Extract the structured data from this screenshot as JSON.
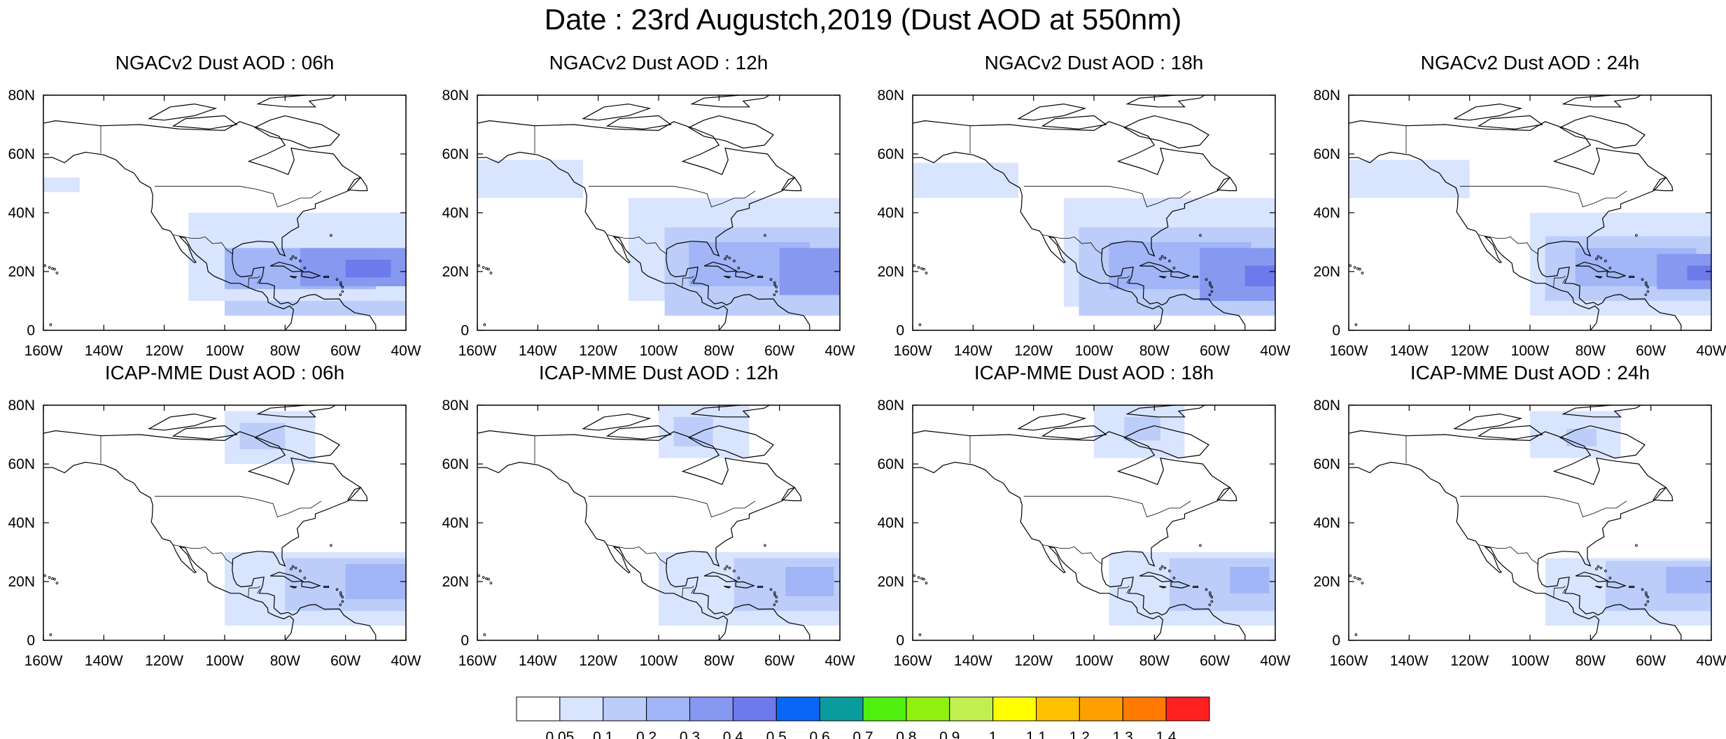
{
  "figure": {
    "title": "Date : 23rd Augustch,2019 (Dust AOD at 550nm)"
  },
  "map": {
    "lon_range": [
      -160,
      -40
    ],
    "lat_range": [
      0,
      80
    ],
    "lon_ticks": [
      "160W",
      "140W",
      "120W",
      "100W",
      "80W",
      "60W",
      "40W"
    ],
    "lat_ticks": [
      "0",
      "20N",
      "40N",
      "60N",
      "80N"
    ],
    "projection": "cylindrical-equidistant",
    "coastlines": true,
    "country_borders": true
  },
  "panels": [
    {
      "id": "ngac-06",
      "title": "NGACv2 Dust AOD : 06h",
      "model": "NGACv2",
      "hour": "06h",
      "regions": [
        {
          "lon": [
            -100,
            -40
          ],
          "lat": [
            5,
            35
          ],
          "level": 0.1
        },
        {
          "lon": [
            -112,
            -40
          ],
          "lat": [
            10,
            40
          ],
          "level": 0.05
        },
        {
          "lon": [
            -160,
            -148
          ],
          "lat": [
            47,
            52
          ],
          "level": 0.05
        },
        {
          "lon": [
            -100,
            -50
          ],
          "lat": [
            14,
            28
          ],
          "level": 0.2
        },
        {
          "lon": [
            -75,
            -40
          ],
          "lat": [
            15,
            28
          ],
          "level": 0.3
        },
        {
          "lon": [
            -60,
            -45
          ],
          "lat": [
            18,
            24
          ],
          "level": 0.4
        }
      ]
    },
    {
      "id": "ngac-12",
      "title": "NGACv2 Dust AOD : 12h",
      "model": "NGACv2",
      "hour": "12h",
      "regions": [
        {
          "lon": [
            -160,
            -125
          ],
          "lat": [
            45,
            58
          ],
          "level": 0.05
        },
        {
          "lon": [
            -110,
            -40
          ],
          "lat": [
            10,
            45
          ],
          "level": 0.05
        },
        {
          "lon": [
            -98,
            -40
          ],
          "lat": [
            5,
            35
          ],
          "level": 0.1
        },
        {
          "lon": [
            -90,
            -50
          ],
          "lat": [
            15,
            30
          ],
          "level": 0.2
        },
        {
          "lon": [
            -60,
            -40
          ],
          "lat": [
            12,
            28
          ],
          "level": 0.3
        }
      ]
    },
    {
      "id": "ngac-18",
      "title": "NGACv2 Dust AOD : 18h",
      "model": "NGACv2",
      "hour": "18h",
      "regions": [
        {
          "lon": [
            -160,
            -125
          ],
          "lat": [
            45,
            57
          ],
          "level": 0.05
        },
        {
          "lon": [
            -110,
            -40
          ],
          "lat": [
            8,
            45
          ],
          "level": 0.05
        },
        {
          "lon": [
            -105,
            -40
          ],
          "lat": [
            5,
            35
          ],
          "level": 0.1
        },
        {
          "lon": [
            -95,
            -48
          ],
          "lat": [
            14,
            30
          ],
          "level": 0.2
        },
        {
          "lon": [
            -65,
            -40
          ],
          "lat": [
            10,
            28
          ],
          "level": 0.3
        },
        {
          "lon": [
            -50,
            -40
          ],
          "lat": [
            15,
            22
          ],
          "level": 0.4
        }
      ]
    },
    {
      "id": "ngac-24",
      "title": "NGACv2 Dust AOD : 24h",
      "model": "NGACv2",
      "hour": "24h",
      "regions": [
        {
          "lon": [
            -160,
            -120
          ],
          "lat": [
            45,
            58
          ],
          "level": 0.05
        },
        {
          "lon": [
            -100,
            -40
          ],
          "lat": [
            5,
            40
          ],
          "level": 0.05
        },
        {
          "lon": [
            -95,
            -40
          ],
          "lat": [
            10,
            32
          ],
          "level": 0.1
        },
        {
          "lon": [
            -85,
            -45
          ],
          "lat": [
            15,
            28
          ],
          "level": 0.2
        },
        {
          "lon": [
            -58,
            -40
          ],
          "lat": [
            14,
            26
          ],
          "level": 0.3
        },
        {
          "lon": [
            -48,
            -40
          ],
          "lat": [
            17,
            22
          ],
          "level": 0.4
        }
      ]
    },
    {
      "id": "icap-06",
      "title": "ICAP-MME Dust AOD : 06h",
      "model": "ICAP-MME",
      "hour": "06h",
      "regions": [
        {
          "lon": [
            -100,
            -70
          ],
          "lat": [
            60,
            78
          ],
          "level": 0.05
        },
        {
          "lon": [
            -95,
            -80
          ],
          "lat": [
            65,
            74
          ],
          "level": 0.1
        },
        {
          "lon": [
            -100,
            -40
          ],
          "lat": [
            5,
            30
          ],
          "level": 0.05
        },
        {
          "lon": [
            -80,
            -40
          ],
          "lat": [
            10,
            28
          ],
          "level": 0.1
        },
        {
          "lon": [
            -60,
            -40
          ],
          "lat": [
            14,
            26
          ],
          "level": 0.2
        }
      ]
    },
    {
      "id": "icap-12",
      "title": "ICAP-MME Dust AOD : 12h",
      "model": "ICAP-MME",
      "hour": "12h",
      "regions": [
        {
          "lon": [
            -100,
            -70
          ],
          "lat": [
            62,
            80
          ],
          "level": 0.05
        },
        {
          "lon": [
            -95,
            -82
          ],
          "lat": [
            66,
            76
          ],
          "level": 0.1
        },
        {
          "lon": [
            -100,
            -40
          ],
          "lat": [
            5,
            30
          ],
          "level": 0.05
        },
        {
          "lon": [
            -75,
            -40
          ],
          "lat": [
            10,
            28
          ],
          "level": 0.1
        },
        {
          "lon": [
            -58,
            -42
          ],
          "lat": [
            15,
            25
          ],
          "level": 0.2
        }
      ]
    },
    {
      "id": "icap-18",
      "title": "ICAP-MME Dust AOD : 18h",
      "model": "ICAP-MME",
      "hour": "18h",
      "regions": [
        {
          "lon": [
            -100,
            -70
          ],
          "lat": [
            62,
            80
          ],
          "level": 0.05
        },
        {
          "lon": [
            -90,
            -78
          ],
          "lat": [
            68,
            76
          ],
          "level": 0.1
        },
        {
          "lon": [
            -95,
            -40
          ],
          "lat": [
            5,
            30
          ],
          "level": 0.05
        },
        {
          "lon": [
            -75,
            -40
          ],
          "lat": [
            10,
            28
          ],
          "level": 0.1
        },
        {
          "lon": [
            -55,
            -42
          ],
          "lat": [
            16,
            25
          ],
          "level": 0.2
        }
      ]
    },
    {
      "id": "icap-24",
      "title": "ICAP-MME Dust AOD : 24h",
      "model": "ICAP-MME",
      "hour": "24h",
      "regions": [
        {
          "lon": [
            -100,
            -70
          ],
          "lat": [
            62,
            78
          ],
          "level": 0.05
        },
        {
          "lon": [
            -88,
            -78
          ],
          "lat": [
            66,
            72
          ],
          "level": 0.1
        },
        {
          "lon": [
            -95,
            -40
          ],
          "lat": [
            5,
            28
          ],
          "level": 0.05
        },
        {
          "lon": [
            -75,
            -40
          ],
          "lat": [
            10,
            27
          ],
          "level": 0.1
        },
        {
          "lon": [
            -55,
            -40
          ],
          "lat": [
            16,
            25
          ],
          "level": 0.2
        }
      ]
    }
  ],
  "colorbar": {
    "labels": [
      "0.05",
      "0.1",
      "0.2",
      "0.3",
      "0.4",
      "0.5",
      "0.6",
      "0.7",
      "0.8",
      "0.9",
      "1",
      "1.1",
      "1.2",
      "1.3",
      "1.4"
    ],
    "colors": [
      "#ffffff",
      "#d9e4ff",
      "#bccdfa",
      "#a1b5f7",
      "#8798f0",
      "#6e79ec",
      "#0a66f7",
      "#0a9c9c",
      "#50f010",
      "#90f010",
      "#c0f050",
      "#ffff00",
      "#ffc000",
      "#ffa000",
      "#ff7800",
      "#ff2020"
    ],
    "levels": [
      0.05,
      0.1,
      0.2,
      0.3,
      0.4,
      0.5,
      0.6,
      0.7,
      0.8,
      0.9,
      1,
      1.1,
      1.2,
      1.3,
      1.4
    ]
  }
}
